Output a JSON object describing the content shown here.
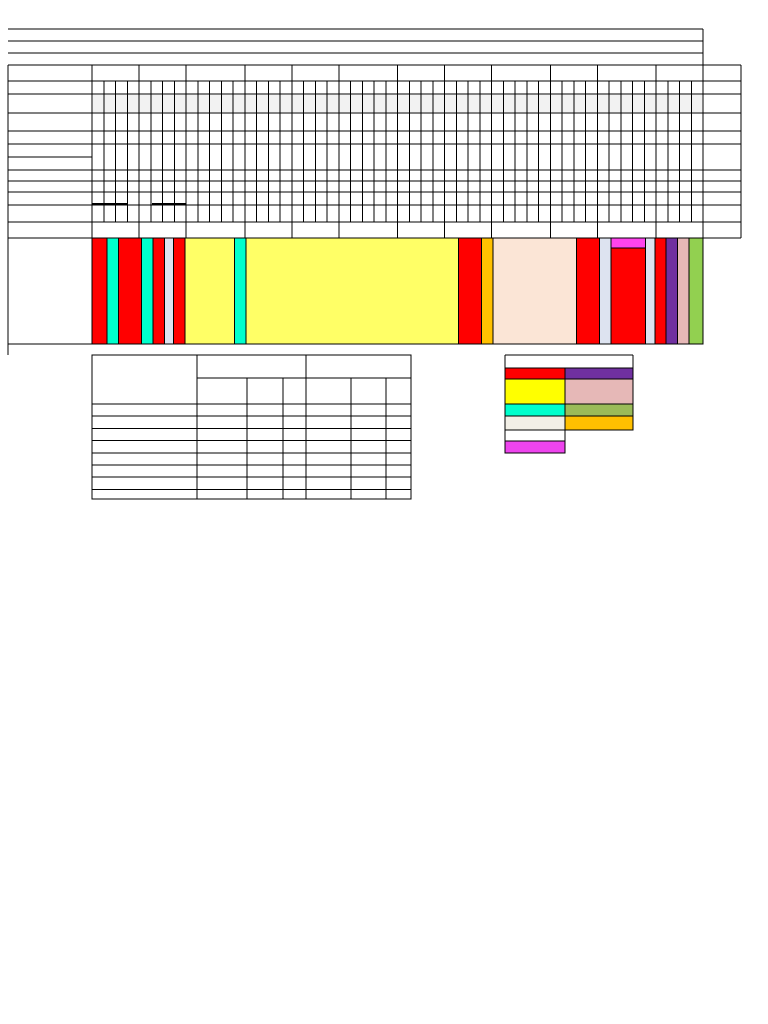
{
  "sheet": {
    "title_rows": 3,
    "month_groups": 12,
    "week_columns_per_group": [
      4,
      4,
      5,
      4,
      4,
      5,
      4,
      4,
      5,
      4,
      5,
      4
    ],
    "bar_rows": 7,
    "schedule_segments": [
      {
        "color": "#ff0000",
        "cols": 1.3
      },
      {
        "color": "#00ffcc",
        "cols": 1.0
      },
      {
        "color": "#ff0000",
        "cols": 2.0
      },
      {
        "color": "#00ffcc",
        "cols": 1.0
      },
      {
        "color": "#ff0000",
        "cols": 1.0
      },
      {
        "color": "#dde3f0",
        "cols": 0.8
      },
      {
        "color": "#ff0000",
        "cols": 1.0
      },
      {
        "color": "#ffff66",
        "cols": 4.3
      },
      {
        "color": "#00ffcc",
        "cols": 1.0
      },
      {
        "color": "#ffff66",
        "cols": 18.5
      },
      {
        "color": "#ff0000",
        "cols": 2.0
      },
      {
        "color": "#ffc000",
        "cols": 1.0
      },
      {
        "color": "#fbe5d6",
        "cols": 7.3
      },
      {
        "color": "#ff0000",
        "cols": 2.0
      },
      {
        "color": "#dde3f0",
        "cols": 1.0
      },
      {
        "color": "#ff0000",
        "cols": 3.0,
        "top_color": "#ff44ee"
      },
      {
        "color": "#dde3f0",
        "cols": 0.8
      },
      {
        "color": "#ff0000",
        "cols": 1.0
      },
      {
        "color": "#7030a0",
        "cols": 1.0
      },
      {
        "color": "#e6b8b7",
        "cols": 1.0
      },
      {
        "color": "#92d050",
        "cols": 1.2
      }
    ]
  },
  "summary_table": {
    "rows": 8,
    "cols_per_group": 3,
    "groups": 2
  },
  "legend": {
    "swatches": [
      {
        "left": "#ff0000",
        "right": "#7030a0"
      },
      {
        "left": "#ffff00",
        "right": "#e6b8b7"
      },
      {
        "left": "#00ffcc",
        "right": "#9bbb59"
      },
      {
        "left": "#f2efe6",
        "right": "#ffc000"
      },
      {
        "left": "#ffffff",
        "right": ""
      },
      {
        "left": "#ee44ee",
        "right": ""
      }
    ]
  }
}
